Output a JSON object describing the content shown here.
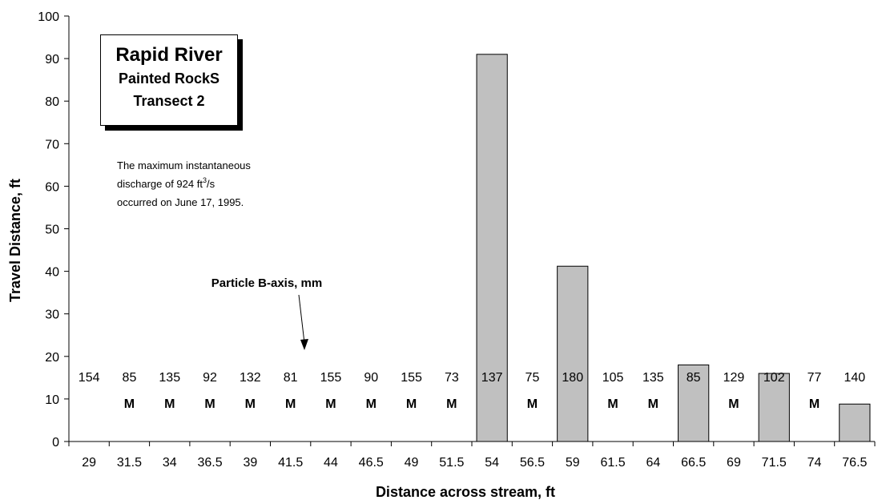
{
  "title_box": {
    "line1": "Rapid River",
    "line2": "Painted RockS",
    "line3": "Transect 2"
  },
  "note": {
    "line1": "The maximum instantaneous",
    "line2_prefix": "discharge of 924 ft",
    "line2_sup": "3",
    "line2_suffix": "/s",
    "line3": "occurred on June 17, 1995."
  },
  "arrow_label": "Particle B-axis, mm",
  "chart_data": {
    "type": "bar",
    "xlabel": "Distance across stream, ft",
    "ylabel": "Travel Distance, ft",
    "ylim": [
      0,
      100
    ],
    "yticks": [
      0,
      10,
      20,
      30,
      40,
      50,
      60,
      70,
      80,
      90,
      100
    ],
    "grid": false,
    "categories": [
      "29",
      "31.5",
      "34",
      "36.5",
      "39",
      "41.5",
      "44",
      "46.5",
      "49",
      "51.5",
      "54",
      "56.5",
      "59",
      "61.5",
      "64",
      "66.5",
      "69",
      "71.5",
      "74",
      "76.5"
    ],
    "values": [
      0,
      0,
      0,
      0,
      0,
      0,
      0,
      0,
      0,
      0,
      91,
      0,
      41.2,
      0,
      0,
      18,
      0,
      16,
      0,
      8.8
    ],
    "particle_b_axis_mm": [
      "154",
      "85",
      "135",
      "92",
      "132",
      "81",
      "155",
      "90",
      "155",
      "73",
      "137",
      "75",
      "180",
      "105",
      "135",
      "85",
      "129",
      "102",
      "77",
      "140"
    ],
    "missing_marker": "M",
    "missing": [
      false,
      true,
      true,
      true,
      true,
      true,
      true,
      true,
      true,
      true,
      false,
      true,
      false,
      true,
      true,
      false,
      true,
      false,
      true,
      false
    ],
    "bar_color": "#c0c0c0"
  }
}
